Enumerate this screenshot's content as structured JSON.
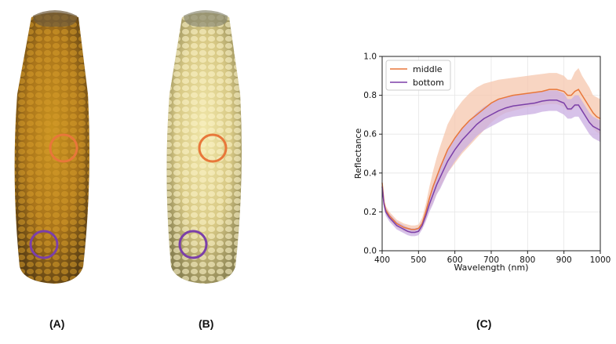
{
  "panels": {
    "a_label": "(A)",
    "b_label": "(B)",
    "c_label": "(C)"
  },
  "colors": {
    "middle": "#e8773a",
    "bottom": "#7b3fa8",
    "middle_band": "#f6c7ad",
    "bottom_band": "#c9aee2",
    "corn_a": "#b7831d",
    "corn_b": "#e3d68e"
  },
  "chart_data": {
    "type": "line",
    "title": "",
    "xlabel": "Wavelength (nm)",
    "ylabel": "Reflectance",
    "xlim": [
      400,
      1000
    ],
    "ylim": [
      0.0,
      1.0
    ],
    "xticks": [
      400,
      500,
      600,
      700,
      800,
      900,
      1000
    ],
    "yticks": [
      0.0,
      0.2,
      0.4,
      0.6,
      0.8,
      1.0
    ],
    "xtick_labels": [
      "400",
      "500",
      "600",
      "700",
      "800",
      "900",
      "1000"
    ],
    "ytick_labels": [
      "0.0",
      "0.2",
      "0.4",
      "0.6",
      "0.8",
      "1.0"
    ],
    "grid": true,
    "legend": "top-left",
    "x": [
      400,
      405,
      410,
      420,
      430,
      440,
      450,
      460,
      470,
      480,
      490,
      500,
      510,
      520,
      530,
      540,
      550,
      560,
      580,
      600,
      620,
      640,
      660,
      680,
      700,
      720,
      740,
      760,
      780,
      800,
      820,
      840,
      860,
      880,
      900,
      910,
      920,
      930,
      940,
      950,
      960,
      970,
      980,
      990,
      1000
    ],
    "series": [
      {
        "name": "middle",
        "values": [
          0.35,
          0.25,
          0.21,
          0.18,
          0.16,
          0.14,
          0.13,
          0.12,
          0.115,
          0.11,
          0.11,
          0.115,
          0.14,
          0.2,
          0.27,
          0.33,
          0.38,
          0.43,
          0.52,
          0.58,
          0.63,
          0.67,
          0.7,
          0.73,
          0.76,
          0.78,
          0.79,
          0.8,
          0.805,
          0.81,
          0.815,
          0.82,
          0.83,
          0.83,
          0.82,
          0.8,
          0.8,
          0.82,
          0.83,
          0.8,
          0.77,
          0.74,
          0.71,
          0.69,
          0.68
        ],
        "upper": [
          0.37,
          0.27,
          0.23,
          0.2,
          0.18,
          0.16,
          0.15,
          0.14,
          0.135,
          0.13,
          0.13,
          0.135,
          0.17,
          0.24,
          0.33,
          0.41,
          0.48,
          0.54,
          0.65,
          0.72,
          0.77,
          0.81,
          0.84,
          0.86,
          0.87,
          0.88,
          0.885,
          0.89,
          0.895,
          0.9,
          0.905,
          0.91,
          0.915,
          0.915,
          0.9,
          0.88,
          0.88,
          0.92,
          0.94,
          0.9,
          0.87,
          0.84,
          0.8,
          0.79,
          0.78
        ],
        "lower": [
          0.33,
          0.23,
          0.19,
          0.16,
          0.14,
          0.12,
          0.11,
          0.1,
          0.095,
          0.09,
          0.09,
          0.095,
          0.11,
          0.16,
          0.21,
          0.25,
          0.29,
          0.33,
          0.4,
          0.45,
          0.5,
          0.54,
          0.58,
          0.62,
          0.66,
          0.69,
          0.71,
          0.72,
          0.73,
          0.74,
          0.745,
          0.75,
          0.755,
          0.755,
          0.74,
          0.72,
          0.72,
          0.74,
          0.74,
          0.72,
          0.69,
          0.66,
          0.63,
          0.61,
          0.6
        ]
      },
      {
        "name": "bottom",
        "values": [
          0.33,
          0.24,
          0.2,
          0.17,
          0.15,
          0.13,
          0.12,
          0.11,
          0.1,
          0.095,
          0.095,
          0.1,
          0.13,
          0.18,
          0.24,
          0.29,
          0.34,
          0.38,
          0.46,
          0.52,
          0.57,
          0.61,
          0.65,
          0.68,
          0.7,
          0.72,
          0.735,
          0.745,
          0.75,
          0.755,
          0.76,
          0.77,
          0.775,
          0.775,
          0.76,
          0.73,
          0.73,
          0.75,
          0.75,
          0.72,
          0.69,
          0.66,
          0.64,
          0.63,
          0.62
        ],
        "upper": [
          0.35,
          0.26,
          0.22,
          0.19,
          0.17,
          0.15,
          0.14,
          0.13,
          0.12,
          0.115,
          0.115,
          0.12,
          0.15,
          0.21,
          0.28,
          0.34,
          0.39,
          0.44,
          0.52,
          0.58,
          0.63,
          0.67,
          0.71,
          0.74,
          0.76,
          0.78,
          0.79,
          0.8,
          0.805,
          0.81,
          0.815,
          0.82,
          0.825,
          0.825,
          0.81,
          0.78,
          0.78,
          0.8,
          0.8,
          0.77,
          0.74,
          0.71,
          0.69,
          0.68,
          0.67
        ],
        "lower": [
          0.31,
          0.22,
          0.18,
          0.15,
          0.13,
          0.11,
          0.1,
          0.09,
          0.08,
          0.075,
          0.075,
          0.08,
          0.11,
          0.15,
          0.2,
          0.24,
          0.29,
          0.32,
          0.4,
          0.46,
          0.51,
          0.55,
          0.59,
          0.62,
          0.64,
          0.66,
          0.68,
          0.69,
          0.695,
          0.7,
          0.705,
          0.715,
          0.72,
          0.72,
          0.7,
          0.68,
          0.68,
          0.69,
          0.69,
          0.66,
          0.63,
          0.6,
          0.58,
          0.57,
          0.56
        ]
      }
    ]
  }
}
